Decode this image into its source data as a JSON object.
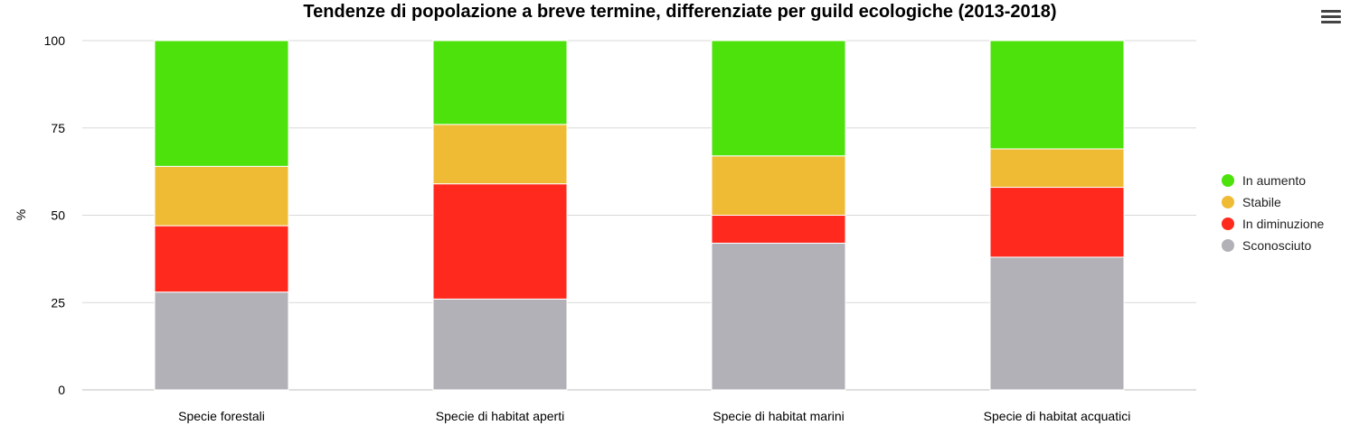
{
  "chart_data": {
    "type": "bar",
    "stacked": true,
    "title": "Tendenze di popolazione a breve termine, differenziate per guild ecologiche (2013-2018)",
    "ylabel": "%",
    "xlabel": "",
    "ylim": [
      0,
      100
    ],
    "yticks": [
      0,
      25,
      50,
      75,
      100
    ],
    "grid": true,
    "legend_position": "right",
    "categories": [
      "Specie forestali",
      "Specie di habitat aperti",
      "Specie di habitat marini",
      "Specie di habitat acquatici"
    ],
    "series": [
      {
        "name": "Sconosciuto",
        "color": "#b2b1b7",
        "values": [
          28,
          26,
          42,
          38
        ]
      },
      {
        "name": "In diminuzione",
        "color": "#ff2a1d",
        "values": [
          19,
          33,
          8,
          20
        ]
      },
      {
        "name": "Stabile",
        "color": "#f0bb34",
        "values": [
          17,
          17,
          17,
          11
        ]
      },
      {
        "name": "In aumento",
        "color": "#4de20b",
        "values": [
          36,
          24,
          33,
          31
        ]
      }
    ],
    "legend_order": [
      "In aumento",
      "Stabile",
      "In diminuzione",
      "Sconosciuto"
    ]
  },
  "menu": {
    "icon": "hamburger-menu-icon"
  }
}
